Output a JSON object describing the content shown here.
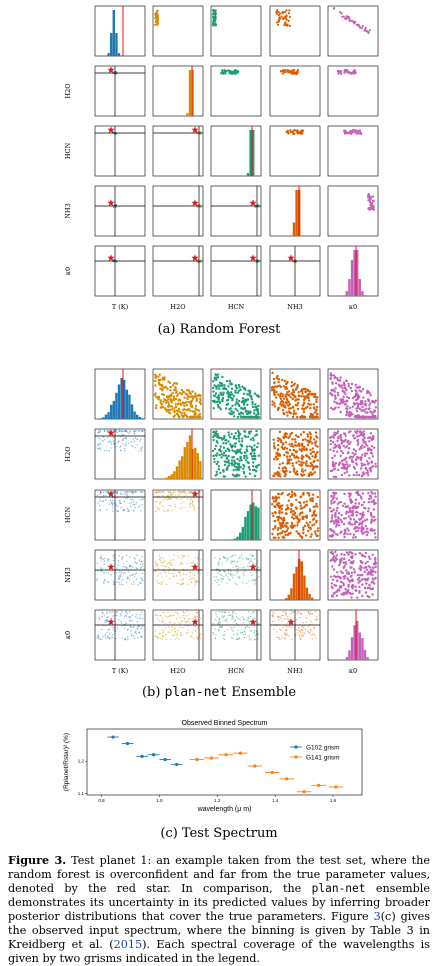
{
  "panel_a": {
    "caption": "(a) Random Forest",
    "row_labels": [
      "H2O",
      "HCN",
      "NH3",
      "κ0"
    ],
    "col_labels": [
      "T (K)",
      "H2O",
      "HCN",
      "NH3",
      "κ0"
    ],
    "colors": [
      "#1f77b4",
      "#d98a00",
      "#1b9e77",
      "#d95f02",
      "#c461b8"
    ]
  },
  "panel_b": {
    "caption_prefix": "(b) ",
    "caption_mono": "plan-net",
    "caption_suffix": " Ensemble"
  },
  "panel_c": {
    "caption": "(c) Test Spectrum"
  },
  "chart_data": {
    "type": "scatter",
    "title": "Observed Binned Spectrum",
    "xlabel": "wavelength (μ m)",
    "ylabel": "(Rplanet/Rstar)² (%)",
    "xlim": [
      0.75,
      1.7
    ],
    "ylim": [
      1.095,
      1.3
    ],
    "x_ticks": [
      "0.8",
      "1.0",
      "1.2",
      "1.4",
      "1.6"
    ],
    "y_ticks": [
      "1.1",
      "1.2"
    ],
    "legend": "top-right",
    "series": [
      {
        "name": "G102 grism",
        "color": "#1f77b4",
        "x": [
          0.84,
          0.89,
          0.94,
          0.98,
          1.02,
          1.06
        ],
        "y": [
          1.275,
          1.255,
          1.215,
          1.22,
          1.205,
          1.19
        ],
        "xerr": 0.02
      },
      {
        "name": "G141 grism",
        "color": "#ff7f0e",
        "x": [
          1.13,
          1.18,
          1.23,
          1.28,
          1.33,
          1.39,
          1.44,
          1.5,
          1.55,
          1.61
        ],
        "y": [
          1.205,
          1.21,
          1.22,
          1.225,
          1.185,
          1.165,
          1.145,
          1.105,
          1.125,
          1.12
        ],
        "xerr": 0.025
      }
    ]
  },
  "caption": {
    "label": "Figure 3.",
    "t1": " Test planet 1: an example taken from the test set, where the random forest is overconfident and far from the true parameter values, denoted by the red star. In comparison, the ",
    "mono": "plan-net",
    "t2": " ensemble demonstrates its uncertainty in its predicted values by inferring broader posterior distributions that cover the true parameters. Figure ",
    "ref1": "3",
    "t3": "(c) gives the observed input spectrum, where the binning is given by Table 3 in Kreidberg et al. (",
    "ref2": "2015",
    "t4": "). Each spectral coverage of the wavelengths is given by two grisms indicated in the legend."
  }
}
